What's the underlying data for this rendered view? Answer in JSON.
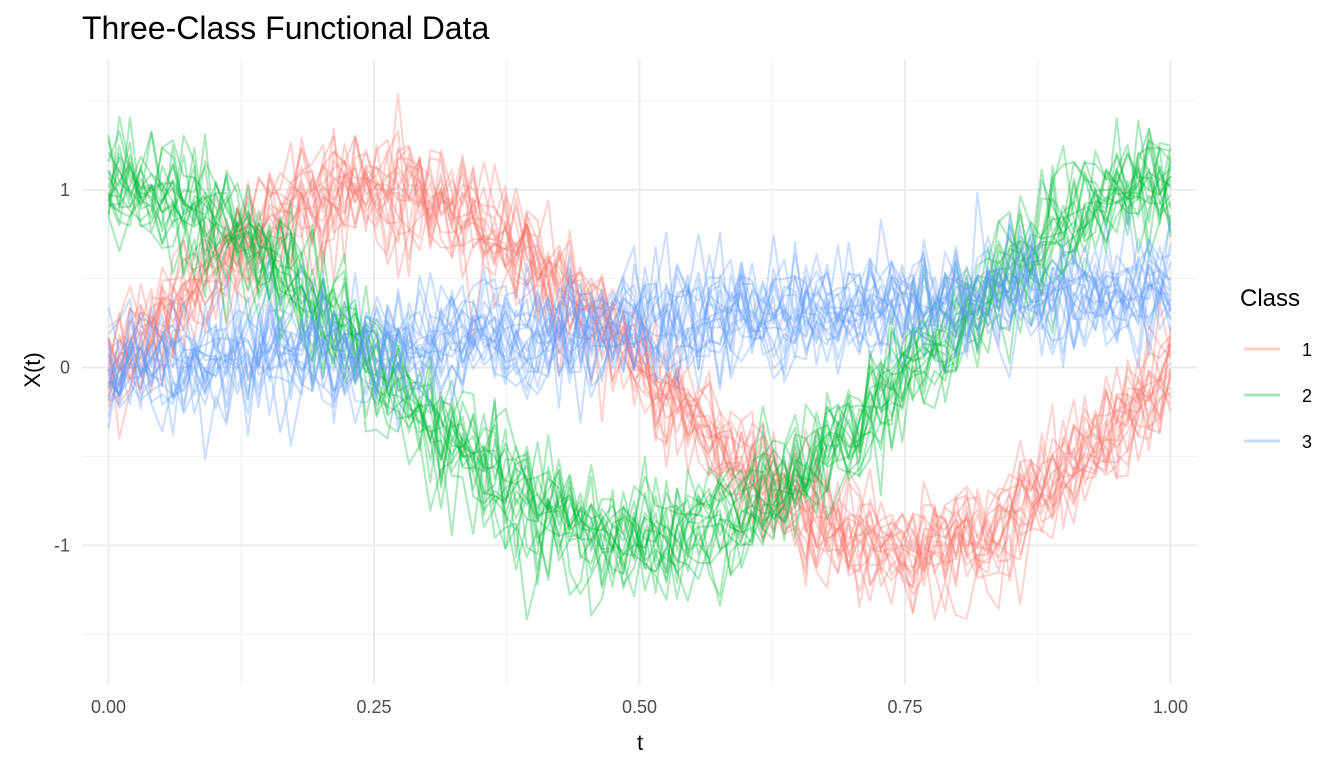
{
  "chart_data": {
    "type": "line",
    "title": "Three-Class Functional Data",
    "xlabel": "t",
    "ylabel": "X(t)",
    "xlim": [
      -0.025,
      1.025
    ],
    "ylim": [
      -1.78,
      1.73
    ],
    "x_ticks": [
      0,
      0.25,
      0.5,
      0.75,
      1
    ],
    "x_tick_labels": [
      "0.00",
      "0.25",
      "0.50",
      "0.75",
      "1.00"
    ],
    "y_ticks": [
      -1,
      0,
      1
    ],
    "y_tick_labels": [
      "-1",
      "0",
      "1"
    ],
    "grid": true,
    "legend": {
      "title": "Class",
      "position": "right"
    },
    "line_alpha": 0.33,
    "noise_sd": 0.16,
    "x": [
      0,
      0.0101,
      0.0202,
      0.0303,
      0.0404,
      0.0505,
      0.0606,
      0.0707,
      0.0808,
      0.0909,
      0.101,
      0.1111,
      0.1212,
      0.1313,
      0.1414,
      0.1515,
      0.1616,
      0.1717,
      0.1818,
      0.1919,
      0.202,
      0.2121,
      0.2222,
      0.2323,
      0.2424,
      0.2525,
      0.2626,
      0.2727,
      0.2828,
      0.2929,
      0.303,
      0.3131,
      0.3232,
      0.3333,
      0.3434,
      0.3535,
      0.3636,
      0.3737,
      0.3838,
      0.3939,
      0.404,
      0.4141,
      0.4242,
      0.4343,
      0.4444,
      0.4545,
      0.4646,
      0.4747,
      0.4848,
      0.4949,
      0.5051,
      0.5152,
      0.5253,
      0.5354,
      0.5455,
      0.5556,
      0.5657,
      0.5758,
      0.5859,
      0.596,
      0.6061,
      0.6162,
      0.6263,
      0.6364,
      0.6465,
      0.6566,
      0.6667,
      0.6768,
      0.6869,
      0.697,
      0.7071,
      0.7172,
      0.7273,
      0.7374,
      0.7475,
      0.7576,
      0.7677,
      0.7778,
      0.7879,
      0.798,
      0.8081,
      0.8182,
      0.8283,
      0.8384,
      0.8485,
      0.8586,
      0.8687,
      0.8788,
      0.8889,
      0.899,
      0.9091,
      0.9192,
      0.9293,
      0.9394,
      0.9495,
      0.9596,
      0.9697,
      0.9798,
      0.9899,
      1
    ],
    "series": [
      {
        "name": "1",
        "color": "#F8766D",
        "curves": 20,
        "mean": [
          0,
          0.063,
          0.127,
          0.189,
          0.25,
          0.309,
          0.368,
          0.423,
          0.482,
          0.54,
          0.59,
          0.643,
          0.687,
          0.74,
          0.778,
          0.817,
          0.853,
          0.885,
          0.912,
          0.937,
          0.958,
          0.975,
          0.989,
          0.998,
          1.004,
          1.005,
          1.002,
          0.995,
          0.984,
          0.97,
          0.951,
          0.93,
          0.904,
          0.874,
          0.845,
          0.809,
          0.771,
          0.729,
          0.686,
          0.639,
          0.59,
          0.539,
          0.485,
          0.43,
          0.374,
          0.316,
          0.258,
          0.198,
          0.137,
          0.075,
          -0.016,
          -0.078,
          -0.14,
          -0.2,
          -0.26,
          -0.318,
          -0.376,
          -0.432,
          -0.487,
          -0.541,
          -0.59,
          -0.641,
          -0.687,
          -0.733,
          -0.775,
          -0.815,
          -0.852,
          -0.884,
          -0.913,
          -0.94,
          -0.962,
          -0.979,
          -0.993,
          -1.0,
          -1.005,
          -1.005,
          -1.001,
          -0.992,
          -0.979,
          -0.961,
          -0.94,
          -0.915,
          -0.885,
          -0.853,
          -0.816,
          -0.776,
          -0.732,
          -0.686,
          -0.635,
          -0.582,
          -0.54,
          -0.482,
          -0.423,
          -0.365,
          -0.306,
          -0.247,
          -0.186,
          -0.124,
          -0.062,
          0
        ]
      },
      {
        "name": "2",
        "color": "#00BA38",
        "curves": 20,
        "mean": [
          1,
          0.998,
          0.992,
          0.982,
          0.968,
          0.95,
          0.929,
          0.903,
          0.874,
          0.841,
          0.806,
          0.766,
          0.724,
          0.68,
          0.632,
          0.582,
          0.53,
          0.476,
          0.42,
          0.362,
          0.304,
          0.244,
          0.184,
          0.122,
          0.061,
          -0.001,
          -0.063,
          -0.124,
          -0.185,
          -0.245,
          -0.305,
          -0.363,
          -0.42,
          -0.476,
          -0.53,
          -0.582,
          -0.632,
          -0.68,
          -0.724,
          -0.766,
          -0.806,
          -0.841,
          -0.874,
          -0.903,
          -0.929,
          -0.95,
          -0.968,
          -0.982,
          -0.992,
          -0.998,
          -1.0,
          -0.998,
          -0.992,
          -0.982,
          -0.968,
          -0.95,
          -0.929,
          -0.903,
          -0.874,
          -0.841,
          -0.806,
          -0.766,
          -0.724,
          -0.68,
          -0.632,
          -0.582,
          -0.53,
          -0.476,
          -0.42,
          -0.362,
          -0.304,
          -0.244,
          -0.184,
          -0.122,
          -0.061,
          0.001,
          0.063,
          0.124,
          0.185,
          0.245,
          0.305,
          0.363,
          0.42,
          0.476,
          0.53,
          0.582,
          0.632,
          0.68,
          0.724,
          0.766,
          0.806,
          0.841,
          0.874,
          0.903,
          0.929,
          0.95,
          0.968,
          0.982,
          0.992,
          1.0
        ]
      },
      {
        "name": "3",
        "color": "#619CFF",
        "curves": 20,
        "mean": [
          0,
          0.004,
          0.009,
          0.013,
          0.018,
          0.022,
          0.027,
          0.031,
          0.036,
          0.04,
          0.045,
          0.049,
          0.054,
          0.058,
          0.063,
          0.067,
          0.072,
          0.076,
          0.081,
          0.085,
          0.09,
          0.094,
          0.099,
          0.103,
          0.108,
          0.112,
          0.117,
          0.121,
          0.126,
          0.13,
          0.135,
          0.139,
          0.144,
          0.148,
          0.153,
          0.157,
          0.162,
          0.166,
          0.171,
          0.175,
          0.18,
          0.184,
          0.189,
          0.193,
          0.198,
          0.202,
          0.207,
          0.211,
          0.216,
          0.22,
          0.225,
          0.229,
          0.234,
          0.238,
          0.243,
          0.247,
          0.252,
          0.256,
          0.261,
          0.265,
          0.27,
          0.274,
          0.279,
          0.283,
          0.288,
          0.292,
          0.297,
          0.301,
          0.306,
          0.31,
          0.315,
          0.319,
          0.324,
          0.328,
          0.333,
          0.337,
          0.342,
          0.346,
          0.351,
          0.355,
          0.36,
          0.364,
          0.369,
          0.373,
          0.378,
          0.382,
          0.387,
          0.391,
          0.396,
          0.4,
          0.405,
          0.409,
          0.414,
          0.418,
          0.423,
          0.427,
          0.432,
          0.436,
          0.441,
          0.45
        ]
      }
    ]
  }
}
